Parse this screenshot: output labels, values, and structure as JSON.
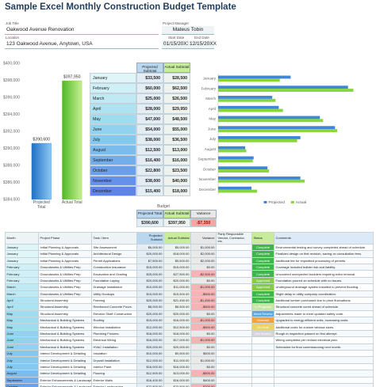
{
  "header": {
    "title": "Sample Excel Monthly Construction Budget Template"
  },
  "project": {
    "job_title_label": "Job Title",
    "job_title": "Oakwood Avenue Renovation",
    "pm_label": "Project Manager",
    "pm": "Mateus Tobin",
    "location_label": "Location",
    "location": "123 Oakwood Avenue, Anytown, USA",
    "start_label": "Start Date",
    "start": "01/15/20XX",
    "end_label": "End Date",
    "end": "12/15/20XX"
  },
  "chart_data": [
    {
      "type": "bar",
      "categories": [
        "Projected Total",
        "Actual Total"
      ],
      "values": [
        390600,
        397950
      ],
      "value_labels": [
        "$390,600",
        "$397,950"
      ],
      "colors": [
        "#3b8fd9",
        "#7fd447"
      ],
      "ylim": [
        384000,
        400000
      ],
      "yticks": [
        {
          "value": 384000,
          "label": "$384,000"
        },
        {
          "value": 386000,
          "label": "$386,000"
        },
        {
          "value": 388000,
          "label": "$388,000"
        },
        {
          "value": 390000,
          "label": "$390,000"
        },
        {
          "value": 392000,
          "label": "$392,000"
        },
        {
          "value": 394000,
          "label": "$394,000"
        },
        {
          "value": 396000,
          "label": "$396,000"
        },
        {
          "value": 398000,
          "label": "$398,000"
        },
        {
          "value": 400000,
          "label": "$400,000"
        }
      ],
      "grid": false
    },
    {
      "type": "hbar",
      "categories": [
        "January",
        "February",
        "March",
        "April",
        "May",
        "June",
        "July",
        "August",
        "September",
        "October",
        "November",
        "December"
      ],
      "series": [
        {
          "name": "Projected",
          "color": "#3f86d6",
          "values": [
            33500,
            60000,
            25000,
            28000,
            47000,
            54000,
            38000,
            12500,
            16400,
            22800,
            38000,
            15400
          ]
        },
        {
          "name": "Actual",
          "color": "#86d63c",
          "values": [
            28500,
            62500,
            26500,
            29950,
            48500,
            55000,
            36500,
            13000,
            16000,
            23500,
            40000,
            18000
          ]
        }
      ],
      "xlim": [
        0,
        70000
      ],
      "legend": "bottom"
    }
  ],
  "monthly_table": {
    "headers": [
      "Projected Subtotal",
      "Actual Subtotal"
    ],
    "rows": [
      [
        "January",
        "$33,500",
        "$28,500"
      ],
      [
        "February",
        "$60,000",
        "$62,500"
      ],
      [
        "March",
        "$25,000",
        "$26,500"
      ],
      [
        "April",
        "$28,000",
        "$29,950"
      ],
      [
        "May",
        "$47,000",
        "$48,500"
      ],
      [
        "June",
        "$54,000",
        "$55,000"
      ],
      [
        "July",
        "$38,000",
        "$36,500"
      ],
      [
        "August",
        "$12,500",
        "$13,000"
      ],
      [
        "September",
        "$16,400",
        "$16,000"
      ],
      [
        "October",
        "$22,800",
        "$23,500"
      ],
      [
        "November",
        "$38,000",
        "$40,000"
      ],
      [
        "December",
        "$15,400",
        "$18,000"
      ]
    ]
  },
  "budget": {
    "title": "Budget",
    "headers": [
      "Projected Total",
      "Actual Subtotal",
      "Variance"
    ],
    "values": [
      "$390,600",
      "$397,950",
      "-$7,350"
    ]
  },
  "task_table": {
    "headers": [
      "Month",
      "Project Phase",
      "Task / Item",
      "Projected Subtotal",
      "Actual Subtotal",
      "Variance",
      "Party Responsible Vendor, Contractor, etc.",
      "Status",
      "Comments"
    ],
    "rows": [
      {
        "month": "January",
        "phase": "Initial Planning & Approvals",
        "task": "Site Assessment",
        "projected": "$6,000.00",
        "actual": "$5,000.00",
        "variance": "$1,000.00",
        "status": "Complete",
        "comment": "Environmental testing and survey completed ahead of schedule."
      },
      {
        "month": "January",
        "phase": "Initial Planning & Approvals",
        "task": "Architectural Design",
        "projected": "$20,000.00",
        "actual": "$18,000.00",
        "variance": "$2,000.00",
        "status": "Complete",
        "comment": "Finalized design on first revision, saving on consultation fees."
      },
      {
        "month": "January",
        "phase": "Initial Planning & Approvals",
        "task": "Permit Applications",
        "projected": "$7,500.00",
        "actual": "$5,500.00",
        "variance": "$2,000.00",
        "status": "Complete",
        "comment": "Additional fee for expedited processing of permits."
      },
      {
        "month": "February",
        "phase": "Groundworks & Utilities Prep",
        "task": "Construction Insurance",
        "projected": "$15,000.00",
        "actual": "$15,000.00",
        "variance": "$0.00",
        "status": "Complete",
        "comment": "Coverage included builder risk and liability."
      },
      {
        "month": "February",
        "phase": "Groundworks & Utilities Prep",
        "task": "Excavation and Grading",
        "projected": "$25,000.00",
        "actual": "$27,500.00",
        "variance": "-$2,500.00",
        "status": "Complete",
        "comment": "Uncovered unexpected boulders requiring extra removal."
      },
      {
        "month": "February",
        "phase": "Groundworks & Utilities Prep",
        "task": "Foundation Laying",
        "projected": "$20,000.00",
        "actual": "$20,000.00",
        "variance": "$0.00",
        "status": "Approved",
        "comment": "Foundation poured on schedule with no issues."
      },
      {
        "month": "March",
        "phase": "Groundworks & Utilities Prep",
        "task": "Drainage Installation",
        "projected": "$10,000.00",
        "actual": "$11,000.00",
        "variance": "-$1,000.00",
        "status": "Approved",
        "comment": "Underground drainage system installed to prevent flooding."
      },
      {
        "month": "March",
        "phase": "Groundworks & Utilities Prep",
        "task": "Utility Hookups",
        "projected": "$15,000.00",
        "actual": "$15,500.00",
        "variance": "-$500.00",
        "status": "Complete",
        "comment": "Slight delay in utility company coordination."
      },
      {
        "month": "April",
        "phase": "Structural Assembly",
        "task": "Framing",
        "projected": "$20,000.00",
        "actual": "$21,450.00",
        "variance": "-$1,450.00",
        "status": "Complete",
        "comment": "Additional lumber purchased due to price fluctuations."
      },
      {
        "month": "April",
        "phase": "Structural Assembly",
        "task": "Reinforced Concrete Pours",
        "projected": "$8,000.00",
        "actual": "$8,500.00",
        "variance": "-$500.00",
        "status": "In Progress",
        "comment": "Structural concrete cured ahead of schedule."
      },
      {
        "month": "May",
        "phase": "Structural Assembly",
        "task": "Elevator Shaft Construction",
        "projected": "$20,000.00",
        "actual": "$20,000.00",
        "variance": "$0.00",
        "status": "Need Review",
        "comment": "Adjustments made to meet updated safety code."
      },
      {
        "month": "May",
        "phase": "Mechanical & Building Systems",
        "task": "Roofing",
        "projected": "$15,000.00",
        "actual": "$16,000.00",
        "variance": "-$1,000.00",
        "status": "Overdue",
        "comment": "Upgraded to energy-efficient units, increasing costs."
      },
      {
        "month": "May",
        "phase": "Mechanical & Building Systems",
        "task": "Window Installation",
        "projected": "$12,000.00",
        "actual": "$12,500.00",
        "variance": "-$500.00",
        "status": "On Hold",
        "comment": "Additional costs for custom window sizes."
      },
      {
        "month": "June",
        "phase": "Mechanical & Building Systems",
        "task": "Plumbing Fixtures",
        "projected": "$18,000.00",
        "actual": "$18,000.00",
        "variance": "$0.00",
        "status": "Not Started",
        "comment": "Rough-in inspection passed on first attempt."
      },
      {
        "month": "June",
        "phase": "Mechanical & Building Systems",
        "task": "Electrical Wiring",
        "projected": "$16,000.00",
        "actual": "$17,000.00",
        "variance": "-$1,000.00",
        "comment": "Wiring completed per revised electrical plan."
      },
      {
        "month": "June",
        "phase": "Mechanical & Building Systems",
        "task": "HVAC Installation",
        "projected": "$20,000.00",
        "actual": "$20,000.00",
        "variance": "$0.00",
        "comment": "Scheduled for final commissioning next month."
      },
      {
        "month": "July",
        "phase": "Interior Development & Detailing",
        "task": "Insulation",
        "projected": "$10,000.00",
        "actual": "$9,500.00",
        "variance": "$500.00"
      },
      {
        "month": "July",
        "phase": "Interior Development & Detailing",
        "task": "Drywall Installation",
        "projected": "$12,000.00",
        "actual": "$11,000.00",
        "variance": "$1,000.00"
      },
      {
        "month": "July",
        "phase": "Interior Development & Detailing",
        "task": "Interior Paint",
        "projected": "$16,000.00",
        "actual": "$16,000.00",
        "variance": "$0.00"
      },
      {
        "month": "August",
        "phase": "Interior Development & Detailing",
        "task": "Flooring",
        "projected": "$12,500.00",
        "actual": "$13,000.00",
        "variance": "-$500.00"
      },
      {
        "month": "September",
        "phase": "Exterior Enhancements & Landscaping",
        "task": "Exterior Walls",
        "projected": "$16,400.00",
        "actual": "$16,000.00",
        "variance": "$400.00"
      },
      {
        "month": "October",
        "phase": "Exterior Enhancements & Landscaping",
        "task": "Exterior Landscaping",
        "projected": "$22,800.00",
        "actual": "$23,500.00",
        "variance": "-$700.00"
      },
      {
        "month": "November",
        "phase": "Exterior Enhancements & Landscaping",
        "task": "Parking Installation",
        "projected": "$38,000.00",
        "actual": "$40,000.00",
        "variance": "-$2,000.00"
      },
      {
        "month": "December",
        "phase": "Final Inspections & Cleanup",
        "task": "Final Inspections",
        "projected": "$15,400.00",
        "actual": "$18,000.00",
        "variance": "-$2,600.00"
      }
    ]
  }
}
